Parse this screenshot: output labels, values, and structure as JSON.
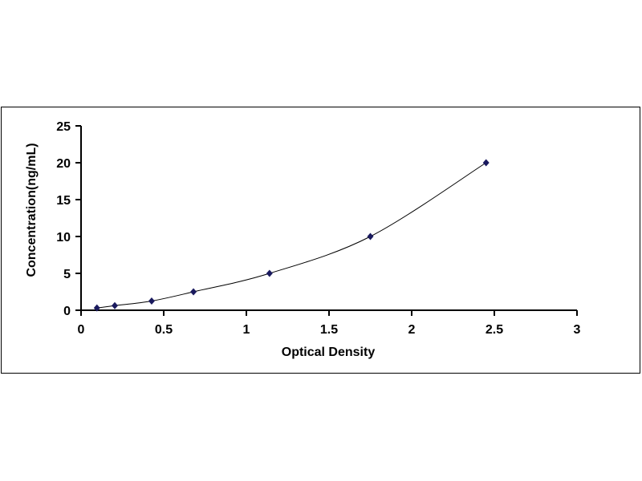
{
  "chart_data": {
    "type": "scatter",
    "title": "",
    "xlabel": "Optical Density",
    "ylabel": "Concentration(ng/mL)",
    "xlim": [
      0,
      3
    ],
    "ylim": [
      0,
      25
    ],
    "xticks": [
      "0",
      "0.5",
      "1",
      "1.5",
      "2",
      "2.5",
      "3"
    ],
    "yticks": [
      "0",
      "5",
      "10",
      "15",
      "20",
      "25"
    ],
    "grid": false,
    "legend": "none",
    "trendline": "smooth curve",
    "marker": "diamond",
    "colors": {
      "marker": "#1a1a5e",
      "line": "#000000"
    },
    "series": [
      {
        "x": [
          0.096,
          0.204,
          0.427,
          0.68,
          1.14,
          1.75,
          2.45
        ],
        "y": [
          0.312,
          0.625,
          1.25,
          2.5,
          5,
          10,
          20
        ]
      }
    ]
  }
}
